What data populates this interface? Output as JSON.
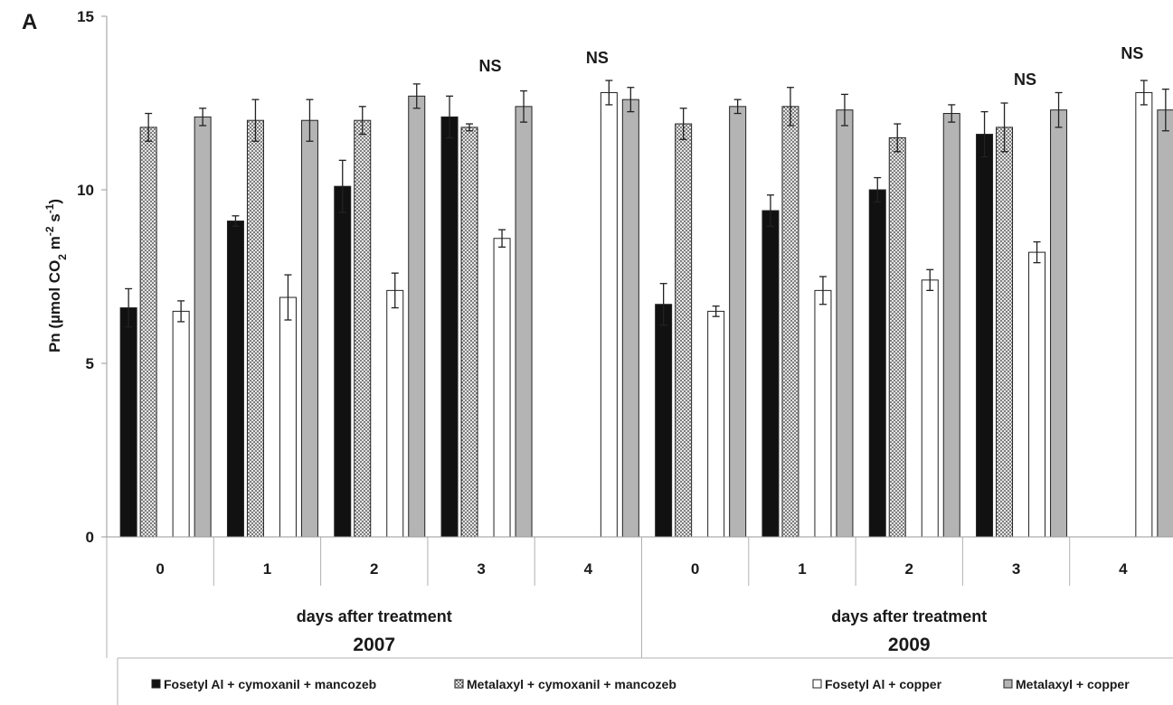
{
  "chart_data": {
    "type": "bar",
    "panel_label": "A",
    "ylabel": "Pn (µmol CO2 m-2 s-1)",
    "ylabel_parts": {
      "prefix": "Pn (µmol CO",
      "sub": "2",
      "mid1": " m",
      "sup1": "-2",
      "mid2": " s",
      "sup2": "-1",
      "suffix": ")"
    },
    "ylim": [
      0,
      15
    ],
    "yticks": [
      0,
      5,
      10,
      15
    ],
    "groups": [
      {
        "xlabel": "days after treatment",
        "year": "2007",
        "categories": [
          "0",
          "1",
          "2",
          "3",
          "4"
        ]
      },
      {
        "xlabel": "days after treatment",
        "year": "2009",
        "categories": [
          "0",
          "1",
          "2",
          "3",
          "4"
        ]
      }
    ],
    "annotations": [
      {
        "group": 0,
        "category": 3,
        "text": "NS"
      },
      {
        "group": 0,
        "category": 4,
        "text": "NS"
      },
      {
        "group": 1,
        "category": 3,
        "text": "NS"
      },
      {
        "group": 1,
        "category": 4,
        "text": "NS"
      }
    ],
    "series": [
      {
        "name": "Fosetyl Al + cymoxanil + mancozeb",
        "fill": "#111111",
        "pattern": "solid",
        "values": [
          [
            6.6,
            9.1,
            10.1,
            12.1,
            null
          ],
          [
            6.7,
            9.4,
            10.0,
            11.6,
            null
          ]
        ],
        "errors": [
          [
            0.55,
            0.15,
            0.75,
            0.6,
            null
          ],
          [
            0.6,
            0.45,
            0.35,
            0.65,
            null
          ]
        ]
      },
      {
        "name": "Metalaxyl + cymoxanil + mancozeb",
        "fill": "#cfcfcf",
        "pattern": "dotted",
        "values": [
          [
            11.8,
            12.0,
            12.0,
            11.8,
            null
          ],
          [
            11.9,
            12.4,
            11.5,
            11.8,
            null
          ]
        ],
        "errors": [
          [
            0.4,
            0.6,
            0.4,
            0.1,
            null
          ],
          [
            0.45,
            0.55,
            0.4,
            0.7,
            null
          ]
        ]
      },
      {
        "name": "Fosetyl Al + copper",
        "fill": "#ffffff",
        "pattern": "solid",
        "values": [
          [
            6.5,
            6.9,
            7.1,
            8.6,
            12.8
          ],
          [
            6.5,
            7.1,
            7.4,
            8.2,
            12.8
          ]
        ],
        "errors": [
          [
            0.3,
            0.65,
            0.5,
            0.25,
            0.35
          ],
          [
            0.15,
            0.4,
            0.3,
            0.3,
            0.35
          ]
        ]
      },
      {
        "name": "Metalaxyl + copper",
        "fill": "#b4b4b4",
        "pattern": "solid",
        "values": [
          [
            12.1,
            12.0,
            12.7,
            12.4,
            12.6
          ],
          [
            12.4,
            12.3,
            12.2,
            12.3,
            12.3
          ]
        ],
        "errors": [
          [
            0.25,
            0.6,
            0.35,
            0.45,
            0.35
          ],
          [
            0.2,
            0.45,
            0.25,
            0.5,
            0.6
          ]
        ]
      }
    ],
    "legend_position": "bottom",
    "grid": false
  }
}
